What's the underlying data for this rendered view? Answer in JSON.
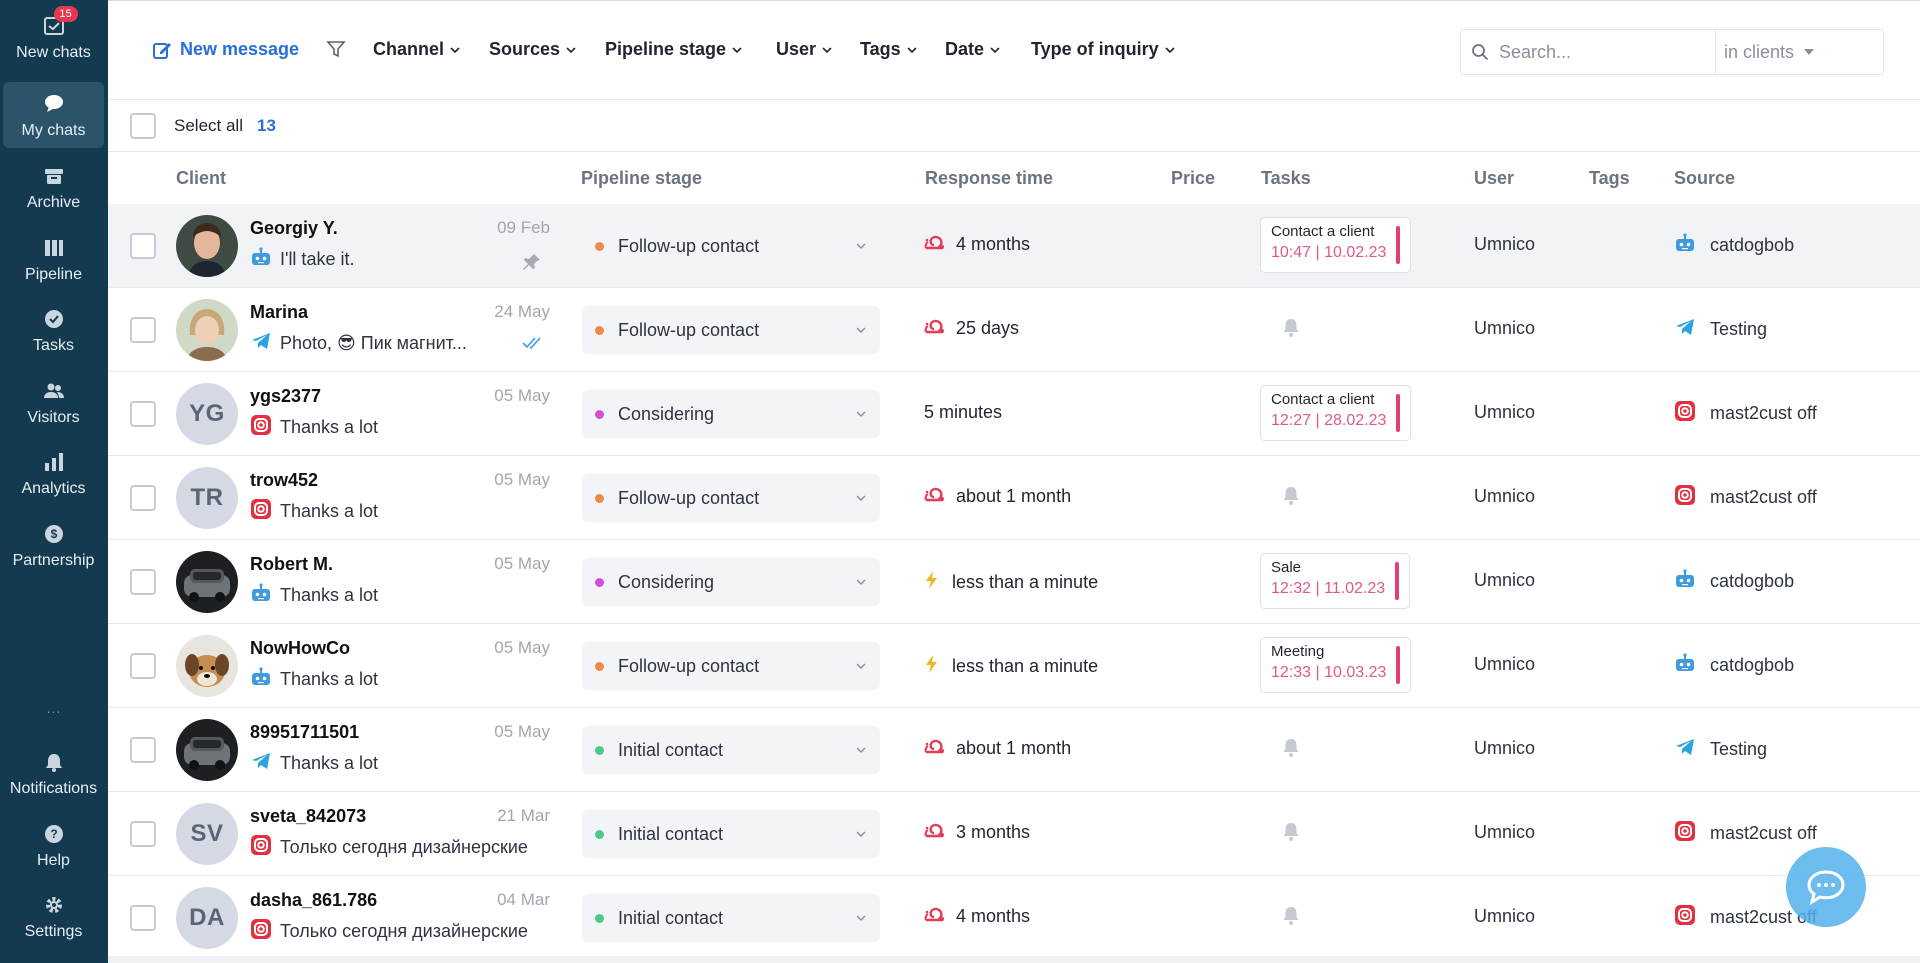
{
  "sidebar": {
    "items": [
      {
        "label": "New chats",
        "icon": "new-chats-icon",
        "badge": "15"
      },
      {
        "label": "My chats",
        "icon": "chat-bubble-icon"
      },
      {
        "label": "Archive",
        "icon": "archive-icon"
      },
      {
        "label": "Pipeline",
        "icon": "pipeline-icon"
      },
      {
        "label": "Tasks",
        "icon": "check-circle-icon"
      },
      {
        "label": "Visitors",
        "icon": "visitors-icon"
      },
      {
        "label": "Analytics",
        "icon": "analytics-icon"
      },
      {
        "label": "Partnership",
        "icon": "dollar-circle-icon"
      }
    ],
    "more": "...",
    "bottom_items": [
      {
        "label": "Notifications",
        "icon": "bell-icon"
      },
      {
        "label": "Help",
        "icon": "help-icon"
      },
      {
        "label": "Settings",
        "icon": "gear-icon"
      }
    ]
  },
  "toolbar": {
    "new_message": "New message",
    "filters": [
      "Channel",
      "Sources",
      "Pipeline stage",
      "User",
      "Tags",
      "Date",
      "Type of inquiry"
    ],
    "search_placeholder": "Search...",
    "search_scope": "in clients"
  },
  "selection": {
    "label": "Select all",
    "count": "13"
  },
  "columns": {
    "client": "Client",
    "pipeline_stage": "Pipeline stage",
    "response_time": "Response time",
    "price": "Price",
    "tasks": "Tasks",
    "user": "User",
    "tags": "Tags",
    "source": "Source"
  },
  "rows": [
    {
      "name": "Georgiy Y.",
      "date": "09 Feb",
      "channel": "bot",
      "message": "I'll take it.",
      "meta": "pin",
      "stage": "Follow-up contact",
      "stage_color": "#f08a4b",
      "resp_icon": "snail",
      "response": "4 months",
      "task": {
        "name": "Contact a client",
        "time": "10:47 | 10.02.23"
      },
      "user": "Umnico",
      "source_icon": "bot",
      "source": "catdogbob",
      "avatar": "photo-man"
    },
    {
      "name": "Marina",
      "date": "24 May",
      "channel": "telegram",
      "message": "Photo, 😎 Пик магнит...",
      "meta": "double-check",
      "stage": "Follow-up contact",
      "stage_color": "#f08a4b",
      "resp_icon": "snail",
      "response": "25 days",
      "task": null,
      "user": "Umnico",
      "source_icon": "telegram",
      "source": "Testing",
      "avatar": "photo-woman"
    },
    {
      "name": "ygs2377",
      "date": "05 May",
      "channel": "instagram",
      "message": "Thanks a lot",
      "meta": "",
      "stage": "Considering",
      "stage_color": "#d64fd4",
      "resp_icon": "",
      "response": "5 minutes",
      "task": {
        "name": "Contact a client",
        "time": "12:27 | 28.02.23"
      },
      "user": "Umnico",
      "source_icon": "instagram",
      "source": "mast2cust off",
      "avatar": "YG"
    },
    {
      "name": "trow452",
      "date": "05 May",
      "channel": "instagram",
      "message": "Thanks a lot",
      "meta": "",
      "stage": "Follow-up contact",
      "stage_color": "#f08a4b",
      "resp_icon": "snail",
      "response": "about 1 month",
      "task": null,
      "user": "Umnico",
      "source_icon": "instagram",
      "source": "mast2cust off",
      "avatar": "TR"
    },
    {
      "name": "Robert M.",
      "date": "05 May",
      "channel": "bot",
      "message": "Thanks a lot",
      "meta": "",
      "stage": "Considering",
      "stage_color": "#d64fd4",
      "resp_icon": "lightning",
      "response": "less than a minute",
      "task": {
        "name": "Sale",
        "time": "12:32 | 11.02.23"
      },
      "user": "Umnico",
      "source_icon": "bot",
      "source": "catdogbob",
      "avatar": "photo-car"
    },
    {
      "name": "NowHowCo",
      "date": "05 May",
      "channel": "bot",
      "message": "Thanks a lot",
      "meta": "",
      "stage": "Follow-up contact",
      "stage_color": "#f08a4b",
      "resp_icon": "lightning",
      "response": "less than a minute",
      "task": {
        "name": "Meeting",
        "time": "12:33 | 10.03.23"
      },
      "user": "Umnico",
      "source_icon": "bot",
      "source": "catdogbob",
      "avatar": "photo-dog"
    },
    {
      "name": "89951711501",
      "date": "05 May",
      "channel": "telegram",
      "message": "Thanks a lot",
      "meta": "",
      "stage": "Initial contact",
      "stage_color": "#4cc98a",
      "resp_icon": "snail",
      "response": "about 1 month",
      "task": null,
      "user": "Umnico",
      "source_icon": "telegram",
      "source": "Testing",
      "avatar": "photo-car"
    },
    {
      "name": "sveta_842073",
      "date": "21 Mar",
      "channel": "instagram",
      "message": "Только сегодня дизайнерские",
      "meta": "",
      "stage": "Initial contact",
      "stage_color": "#4cc98a",
      "resp_icon": "snail",
      "response": "3 months",
      "task": null,
      "user": "Umnico",
      "source_icon": "instagram",
      "source": "mast2cust off",
      "avatar": "SV"
    },
    {
      "name": "dasha_861.786",
      "date": "04 Mar",
      "channel": "instagram",
      "message": "Только сегодня дизайнерские",
      "meta": "",
      "stage": "Initial contact",
      "stage_color": "#4cc98a",
      "resp_icon": "snail",
      "response": "4 months",
      "task": null,
      "user": "Umnico",
      "source_icon": "instagram",
      "source": "mast2cust off",
      "avatar": "DA"
    }
  ],
  "colors": {
    "sidebar": "#133a4f",
    "accent": "#2a6fd6",
    "task_time": "#e05a86",
    "snail": "#e33d55",
    "lightning": "#f3b326",
    "telegram": "#2aa3df",
    "bot": "#3f9be0"
  }
}
